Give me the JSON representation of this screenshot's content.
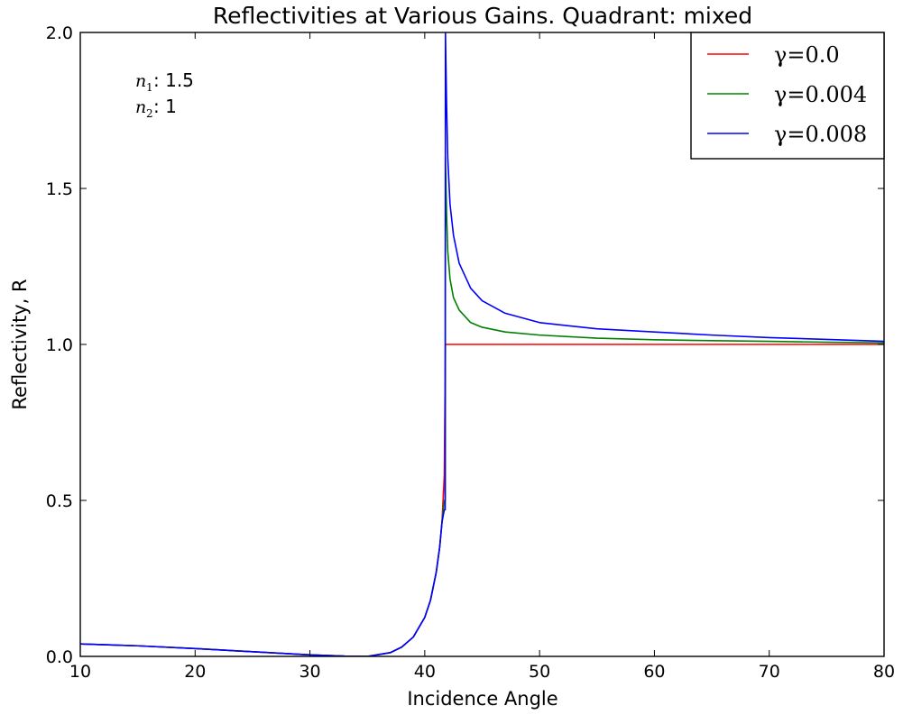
{
  "chart_data": {
    "type": "line",
    "title": "Reflectivities at Various Gains. Quadrant: mixed",
    "xlabel": "Incidence Angle",
    "ylabel": "Reflectivity, R",
    "xlim": [
      10,
      80
    ],
    "ylim": [
      0,
      2.0
    ],
    "x_ticks": [
      10,
      20,
      30,
      40,
      50,
      60,
      70,
      80
    ],
    "x_tick_labels": [
      "10",
      "20",
      "30",
      "40",
      "50",
      "60",
      "70",
      "80"
    ],
    "y_ticks": [
      0,
      0.5,
      1.0,
      1.5,
      2.0
    ],
    "y_tick_labels": [
      "0.0",
      "0.5",
      "1.0",
      "1.5",
      "2.0"
    ],
    "grid": false,
    "legend_position": "top-right",
    "annotations": [
      {
        "symbol": "n",
        "subscript": "1",
        "text": ": 1.5"
      },
      {
        "symbol": "n",
        "subscript": "2",
        "text": ": 1"
      }
    ],
    "series": [
      {
        "name": "γ=0.0",
        "color": "#ff0000",
        "x": [
          10,
          15,
          20,
          25,
          30,
          33,
          35,
          37,
          38,
          39,
          40,
          40.5,
          41,
          41.3,
          41.5,
          41.7,
          41.8,
          45,
          50,
          55,
          60,
          65,
          70,
          75,
          80
        ],
        "y": [
          0.04,
          0.034,
          0.025,
          0.015,
          0.005,
          0.0008,
          0.0,
          0.012,
          0.03,
          0.062,
          0.125,
          0.18,
          0.27,
          0.35,
          0.43,
          0.58,
          1.0,
          1.0,
          1.0,
          1.0,
          1.0,
          1.0,
          1.0,
          1.0,
          1.0
        ]
      },
      {
        "name": "γ=0.004",
        "color": "#008000",
        "x": [
          10,
          15,
          20,
          25,
          30,
          33,
          35,
          37,
          38,
          39,
          40,
          40.5,
          41,
          41.3,
          41.5,
          41.7,
          41.78,
          41.8,
          41.9,
          42,
          42.2,
          42.5,
          43,
          44,
          45,
          47,
          50,
          55,
          60,
          65,
          70,
          75,
          80
        ],
        "y": [
          0.04,
          0.034,
          0.025,
          0.015,
          0.005,
          0.0008,
          0.0,
          0.012,
          0.03,
          0.062,
          0.125,
          0.18,
          0.27,
          0.35,
          0.43,
          0.5,
          0.5,
          1.6,
          1.42,
          1.3,
          1.21,
          1.15,
          1.11,
          1.07,
          1.055,
          1.04,
          1.03,
          1.02,
          1.015,
          1.012,
          1.01,
          1.007,
          1.005
        ]
      },
      {
        "name": "γ=0.008",
        "color": "#0000ff",
        "x": [
          10,
          15,
          20,
          25,
          30,
          33,
          35,
          37,
          38,
          39,
          40,
          40.5,
          41,
          41.3,
          41.5,
          41.7,
          41.78,
          41.8,
          41.9,
          42,
          42.2,
          42.5,
          43,
          44,
          45,
          47,
          50,
          55,
          60,
          65,
          70,
          75,
          80
        ],
        "y": [
          0.04,
          0.034,
          0.025,
          0.015,
          0.005,
          0.0008,
          0.0,
          0.012,
          0.03,
          0.062,
          0.125,
          0.18,
          0.27,
          0.35,
          0.43,
          0.47,
          0.47,
          2.0,
          1.77,
          1.6,
          1.45,
          1.35,
          1.26,
          1.18,
          1.14,
          1.1,
          1.07,
          1.05,
          1.04,
          1.03,
          1.022,
          1.016,
          1.01
        ]
      }
    ]
  }
}
